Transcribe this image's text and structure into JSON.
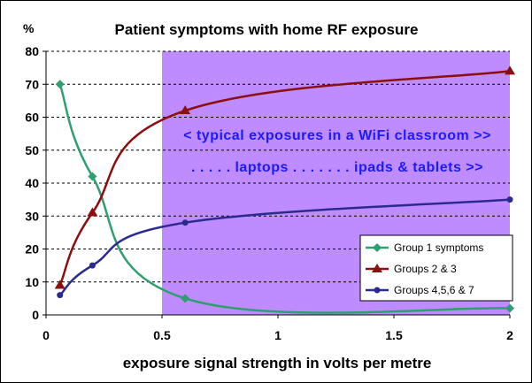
{
  "chart_data": {
    "type": "line",
    "title": "Patient symptoms with home RF exposure",
    "xlabel": "exposure signal strength in volts per metre",
    "ylabel": "%",
    "x_ticks": [
      "0",
      "0.5",
      "1",
      "1.5",
      "2"
    ],
    "y_ticks": [
      "0",
      "10",
      "20",
      "30",
      "40",
      "50",
      "60",
      "70",
      "80"
    ],
    "ylim": [
      0,
      80
    ],
    "grid": "horizontal dashed",
    "legend_position": "bottom-right",
    "shaded_region_note": "x from 0.5 to 2 shaded purple",
    "annotations": [
      "< typical exposures in a WiFi classroom >>",
      ". . . . . laptops . . . . . . . ipads & tablets >>"
    ],
    "series": [
      {
        "name": "Group 1 symptoms",
        "color": "#2e9f6e",
        "marker": "diamond",
        "points": [
          [
            0.06,
            70
          ],
          [
            0.2,
            42
          ],
          [
            0.6,
            5
          ],
          [
            2,
            2
          ]
        ]
      },
      {
        "name": "Groups 2 & 3",
        "color": "#8b0f0f",
        "marker": "triangle",
        "points": [
          [
            0.06,
            9
          ],
          [
            0.2,
            31
          ],
          [
            0.6,
            62
          ],
          [
            2,
            74
          ]
        ]
      },
      {
        "name": "Groups 4,5,6 & 7",
        "color": "#2a2a8f",
        "marker": "circle",
        "points": [
          [
            0.06,
            6
          ],
          [
            0.2,
            15
          ],
          [
            0.6,
            28
          ],
          [
            2,
            35
          ]
        ]
      }
    ]
  },
  "colors": {
    "shade": "#bf8cff",
    "annotation": "#1a1aff"
  }
}
